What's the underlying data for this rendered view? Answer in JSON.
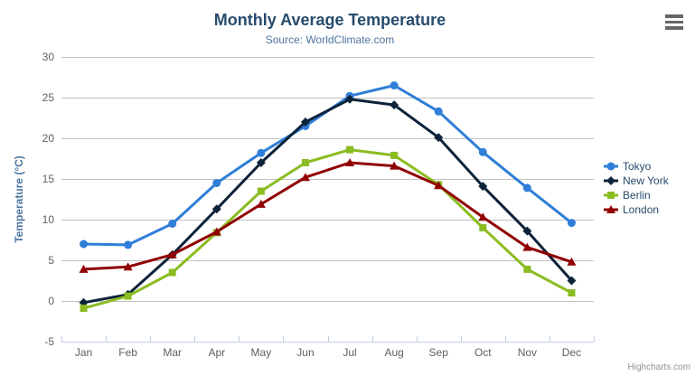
{
  "chart_data": {
    "type": "line",
    "title": "Monthly Average Temperature",
    "subtitle": "Source: WorldClimate.com",
    "xlabel": "",
    "ylabel": "Temperature (°C)",
    "categories": [
      "Jan",
      "Feb",
      "Mar",
      "Apr",
      "May",
      "Jun",
      "Jul",
      "Aug",
      "Sep",
      "Oct",
      "Nov",
      "Dec"
    ],
    "series": [
      {
        "name": "Tokyo",
        "color": "#2f7ed8",
        "marker": "circle",
        "values": [
          7.0,
          6.9,
          9.5,
          14.5,
          18.2,
          21.5,
          25.2,
          26.5,
          23.3,
          18.3,
          13.9,
          9.6
        ]
      },
      {
        "name": "New York",
        "color": "#0d233a",
        "marker": "diamond",
        "values": [
          -0.2,
          0.8,
          5.7,
          11.3,
          17.0,
          22.0,
          24.8,
          24.1,
          20.1,
          14.1,
          8.6,
          2.5
        ]
      },
      {
        "name": "Berlin",
        "color": "#8bbc21",
        "marker": "square",
        "values": [
          -0.9,
          0.6,
          3.5,
          8.4,
          13.5,
          17.0,
          18.6,
          17.9,
          14.3,
          9.0,
          3.9,
          1.0
        ]
      },
      {
        "name": "London",
        "color": "#910000",
        "marker": "triangle",
        "values": [
          3.9,
          4.2,
          5.7,
          8.5,
          11.9,
          15.2,
          17.0,
          16.6,
          14.2,
          10.3,
          6.6,
          4.8
        ]
      }
    ],
    "ylim": [
      -5,
      30
    ],
    "yticks": [
      -5,
      0,
      5,
      10,
      15,
      20,
      25,
      30
    ],
    "grid": true,
    "legend_position": "right",
    "credits": "Highcharts.com",
    "colors": {
      "title": "#274b6d",
      "subtitle": "#4d759e",
      "axis_title": "#4d759e",
      "axis_labels": "#606060",
      "grid_line": "#c0c0c0",
      "axis_line": "#c0d0e0",
      "legend_text": "#274b6d",
      "credits_text": "#909090",
      "export_icon": "#666666"
    }
  }
}
